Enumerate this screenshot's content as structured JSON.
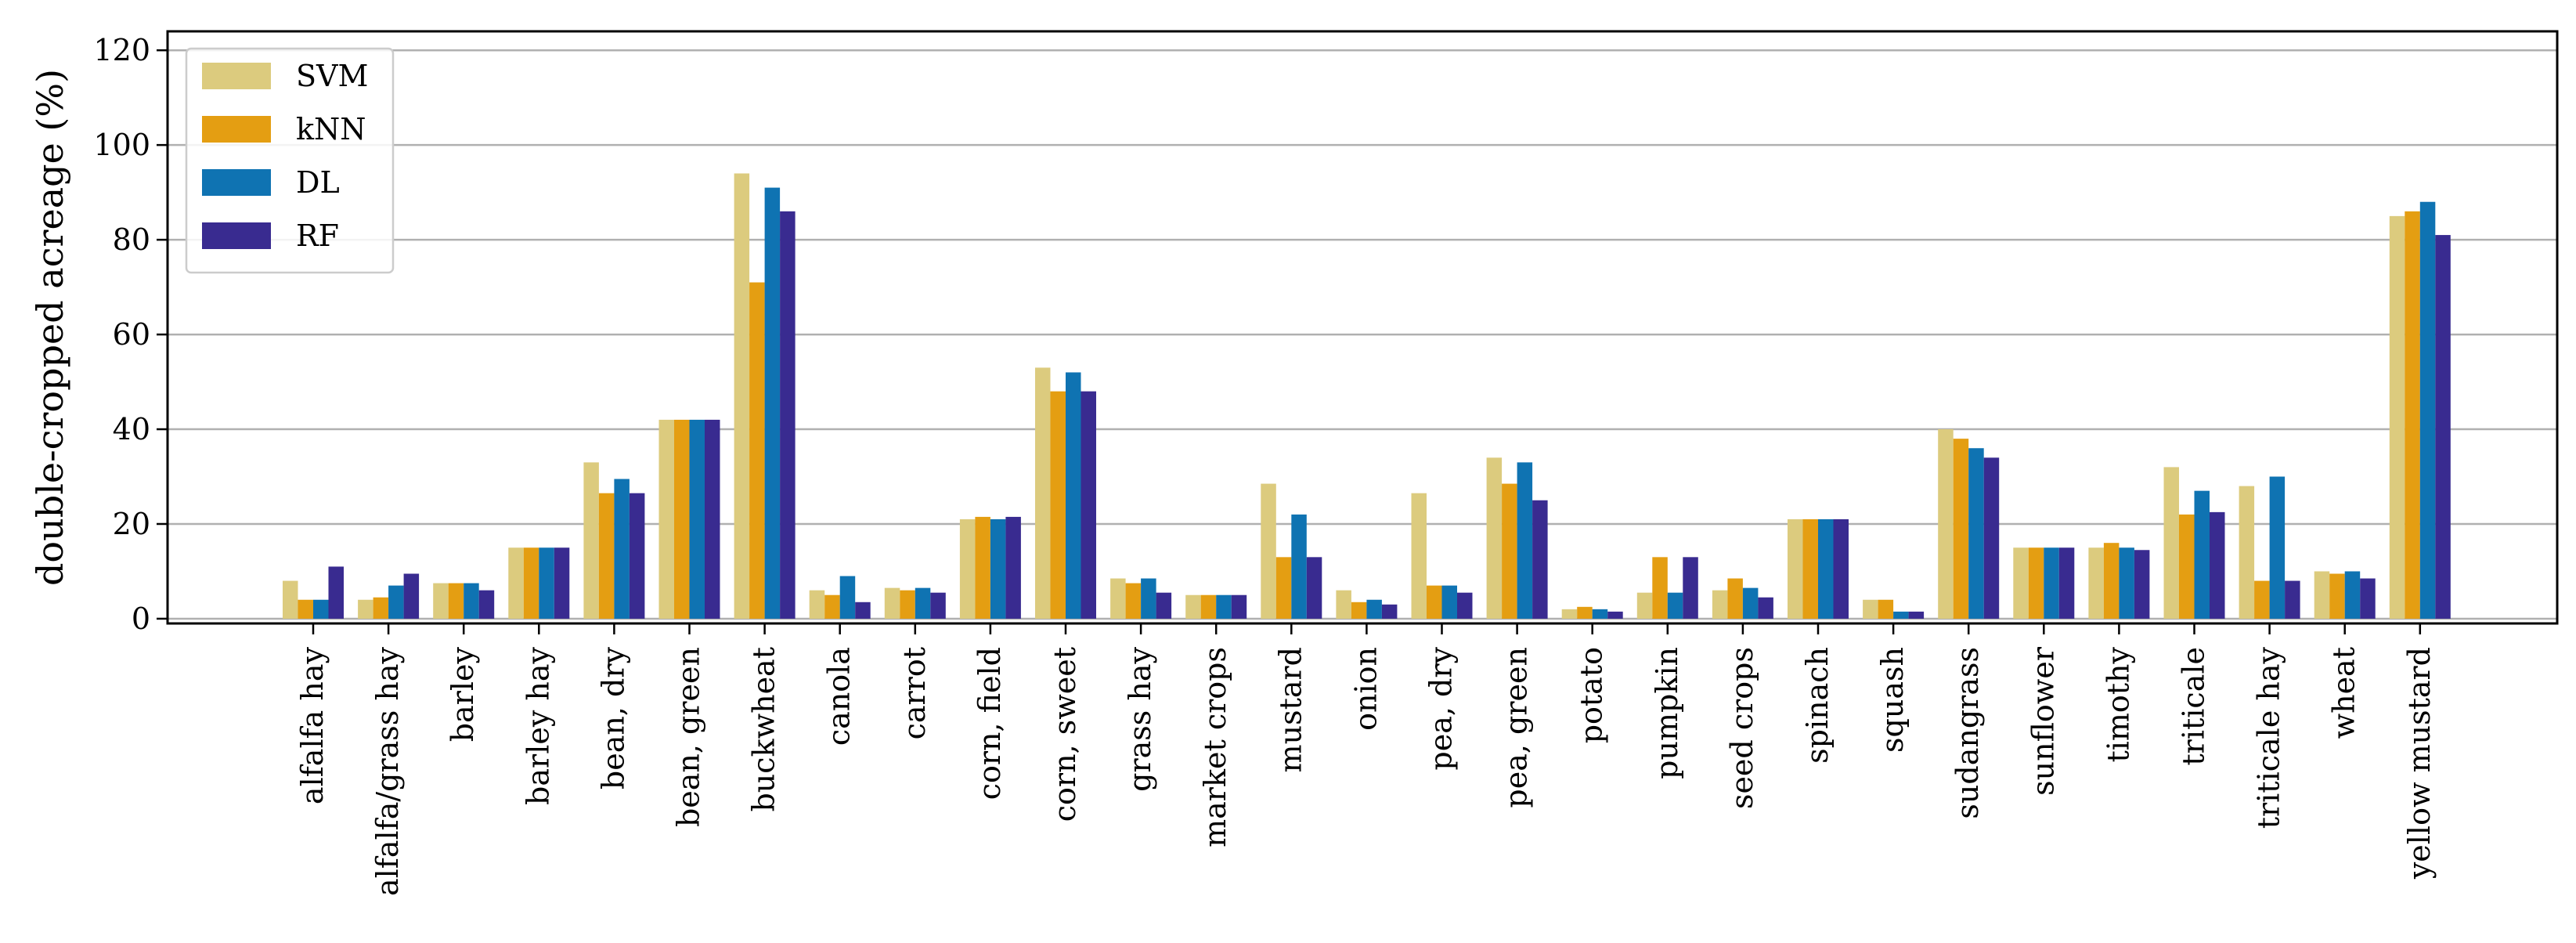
{
  "chart_data": {
    "type": "bar",
    "title": "",
    "xlabel": "",
    "ylabel": "double-cropped acreage (%)",
    "ylim": [
      -1,
      124
    ],
    "yticks": [
      0,
      20,
      40,
      60,
      80,
      100,
      120
    ],
    "grid": "horizontal",
    "legend_position": "top-left",
    "categories": [
      "alfalfa hay",
      "alfalfa/grass hay",
      "barley",
      "barley hay",
      "bean, dry",
      "bean, green",
      "buckwheat",
      "canola",
      "carrot",
      "corn, field",
      "corn, sweet",
      "grass hay",
      "market crops",
      "mustard",
      "onion",
      "pea, dry",
      "pea, green",
      "potato",
      "pumpkin",
      "seed crops",
      "spinach",
      "squash",
      "sudangrass",
      "sunflower",
      "timothy",
      "triticale",
      "triticale hay",
      "wheat",
      "yellow mustard"
    ],
    "series": [
      {
        "name": "SVM",
        "color": "#dccb7e",
        "values": [
          8,
          4,
          7.5,
          15,
          33,
          42,
          94,
          6,
          6.5,
          21,
          53,
          8.5,
          5,
          28.5,
          6,
          26.5,
          34,
          2,
          5.5,
          6,
          21,
          4,
          40,
          15,
          15,
          32,
          28,
          10,
          85
        ]
      },
      {
        "name": "kNN",
        "color": "#e49e12",
        "values": [
          4,
          4.5,
          7.5,
          15,
          26.5,
          42,
          71,
          5,
          6,
          21.5,
          48,
          7.5,
          5,
          13,
          3.5,
          7,
          28.5,
          2.5,
          13,
          8.5,
          21,
          4,
          38,
          15,
          16,
          22,
          8,
          9.5,
          86
        ]
      },
      {
        "name": "DL",
        "color": "#0f73b2",
        "values": [
          4,
          7,
          7.5,
          15,
          29.5,
          42,
          91,
          9,
          6.5,
          21,
          52,
          8.5,
          5,
          22,
          4,
          7,
          33,
          2,
          5.5,
          6.5,
          21,
          1.5,
          36,
          15,
          15,
          27,
          30,
          10,
          88
        ]
      },
      {
        "name": "RF",
        "color": "#392b90",
        "values": [
          11,
          9.5,
          6,
          15,
          26.5,
          42,
          86,
          3.5,
          5.5,
          21.5,
          48,
          5.5,
          5,
          13,
          3,
          5.5,
          25,
          1.5,
          13,
          4.5,
          21,
          1.5,
          34,
          15,
          14.5,
          22.5,
          8,
          8.5,
          81
        ]
      }
    ]
  }
}
